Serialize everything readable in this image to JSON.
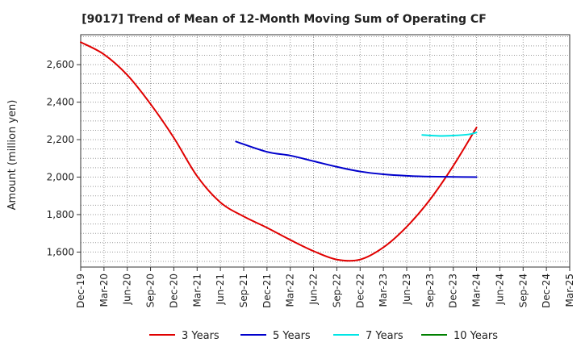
{
  "chart_data": {
    "type": "line",
    "title": "[9017]  Trend of Mean of 12-Month Moving Sum of Operating CF",
    "xlabel": "",
    "ylabel": "Amount (million yen)",
    "ylim": [
      1520,
      2760
    ],
    "yticks": [
      1600,
      1800,
      2000,
      2200,
      2400,
      2600
    ],
    "ytick_labels": [
      "1,600",
      "1,800",
      "2,000",
      "2,200",
      "2,400",
      "2,600"
    ],
    "xlim": [
      0,
      63
    ],
    "xticks": [
      0,
      3,
      6,
      9,
      12,
      15,
      18,
      21,
      24,
      27,
      30,
      33,
      36,
      39,
      42,
      45,
      48,
      51,
      54,
      57,
      60,
      63
    ],
    "xtick_labels": [
      "Dec-19",
      "Mar-20",
      "Jun-20",
      "Sep-20",
      "Dec-20",
      "Mar-21",
      "Jun-21",
      "Sep-21",
      "Dec-21",
      "Mar-22",
      "Jun-22",
      "Sep-22",
      "Dec-22",
      "Mar-23",
      "Jun-23",
      "Sep-23",
      "Dec-23",
      "Mar-24",
      "Jun-24",
      "Sep-24",
      "Dec-24",
      "Mar-25"
    ],
    "grid": true,
    "legend_position": "bottom",
    "series": [
      {
        "name": "3 Years",
        "color": "#e00000",
        "x": [
          0,
          3,
          6,
          9,
          12,
          15,
          18,
          21,
          24,
          27,
          30,
          33,
          36,
          39,
          42,
          45,
          48,
          51
        ],
        "values": [
          2720,
          2655,
          2545,
          2390,
          2210,
          2005,
          1865,
          1790,
          1730,
          1665,
          1605,
          1560,
          1560,
          1625,
          1735,
          1880,
          2060,
          2265
        ]
      },
      {
        "name": "5 Years",
        "color": "#0000cc",
        "x": [
          20,
          24,
          27,
          30,
          33,
          36,
          39,
          42,
          45,
          48,
          51
        ],
        "values": [
          2190,
          2135,
          2115,
          2085,
          2055,
          2030,
          2015,
          2007,
          2003,
          2001,
          2000
        ]
      },
      {
        "name": "7 Years",
        "color": "#00e5e5",
        "x": [
          44,
          46,
          48,
          50,
          51
        ],
        "values": [
          2225,
          2220,
          2222,
          2228,
          2238
        ]
      },
      {
        "name": "10 Years",
        "color": "#008000",
        "x": [],
        "values": []
      }
    ]
  }
}
